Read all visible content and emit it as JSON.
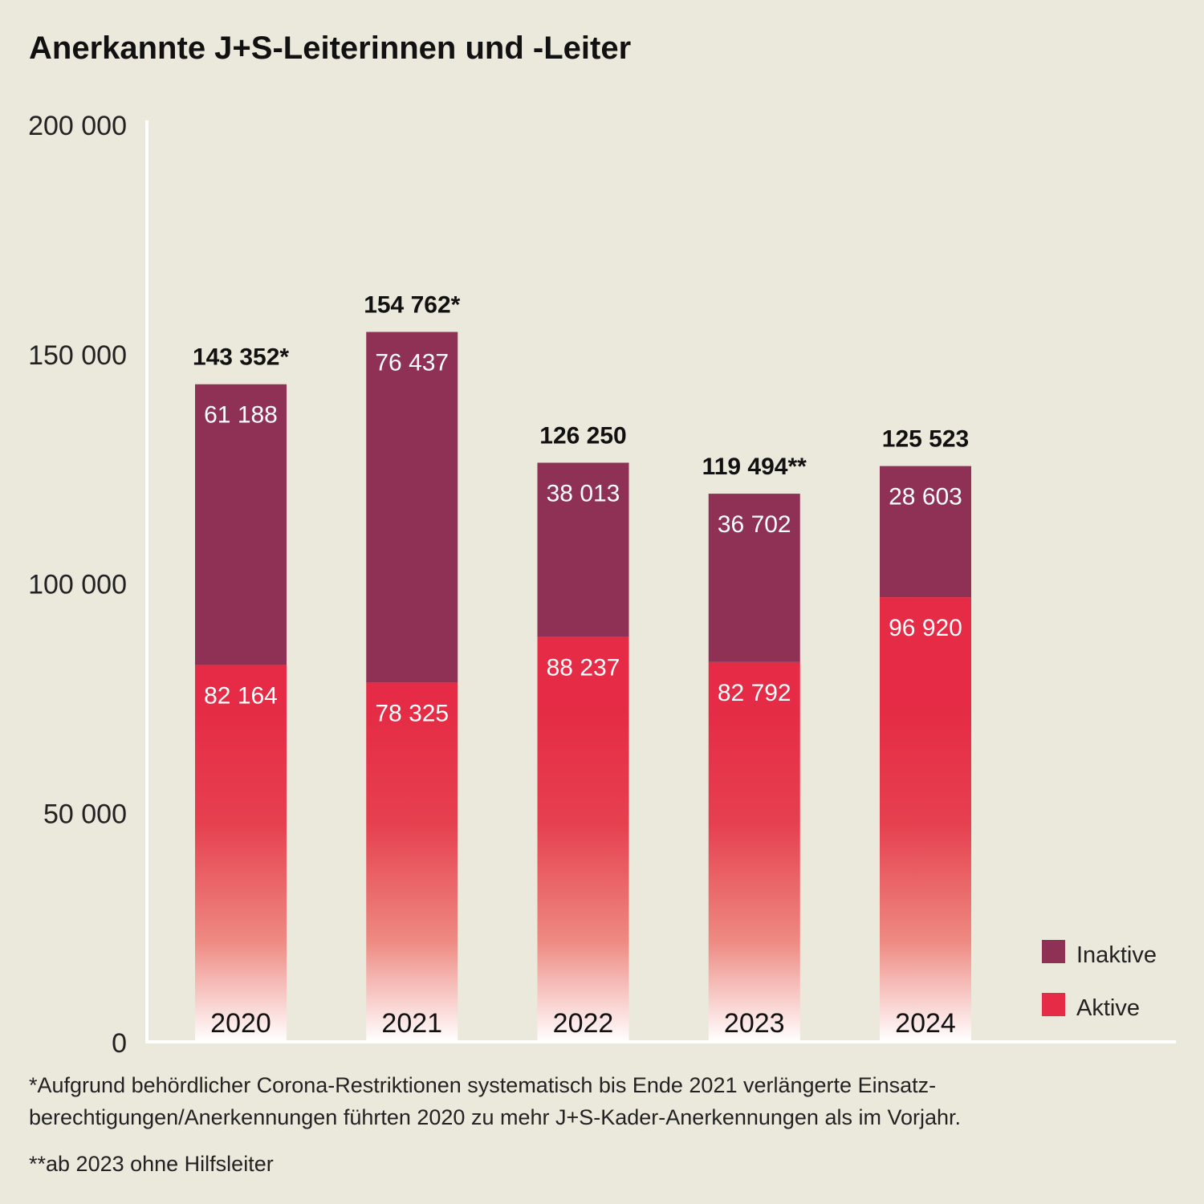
{
  "chart_data": {
    "type": "bar",
    "stacked": true,
    "title": "Anerkannte J+S-Leiterinnen und -Leiter",
    "categories": [
      "2020",
      "2021",
      "2022",
      "2023",
      "2024"
    ],
    "series": [
      {
        "name": "Aktive",
        "color": "#E52B45",
        "values": [
          82164,
          78325,
          88237,
          82792,
          96920
        ],
        "labels": [
          "82 164",
          "78 325",
          "88 237",
          "82 792",
          "96 920"
        ]
      },
      {
        "name": "Inaktive",
        "color": "#8E3154",
        "values": [
          61188,
          76437,
          38013,
          36702,
          28603
        ],
        "labels": [
          "61 188",
          "76 437",
          "38 013",
          "36 702",
          "28 603"
        ]
      }
    ],
    "totals": [
      143352,
      154762,
      126250,
      119494,
      125523
    ],
    "total_labels": [
      "143 352*",
      "154 762*",
      "126 250",
      "119 494**",
      "125 523"
    ],
    "ylim": [
      0,
      200000
    ],
    "yticks": [
      0,
      50000,
      100000,
      150000,
      200000
    ],
    "ytick_labels": [
      "0",
      "50 000",
      "100 000",
      "150 000",
      "200 000"
    ],
    "grid": false,
    "legend_position": "bottom-right",
    "background": "#EBE8DC"
  },
  "footnotes": [
    "*Aufgrund behördlicher Corona-Restriktionen systematisch bis Ende 2021 verlängerte Einsatz-berechtigungen/Anerkennungen führten 2020 zu mehr J+S-Kader-Anerkennungen als im Vorjahr.",
    "**ab 2023 ohne Hilfsleiter"
  ]
}
